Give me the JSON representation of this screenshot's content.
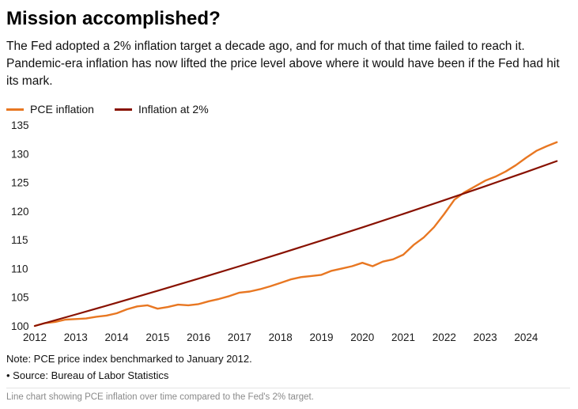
{
  "page": {
    "title": "Mission accomplished?",
    "subtitle": "The Fed adopted a 2% inflation target a decade ago, and for much of that time failed to reach it. Pandemic-era inflation has now lifted the price level above where it would have been if the Fed had hit its mark.",
    "note": "Note: PCE price index benchmarked to January 2012.",
    "source": "• Source: Bureau of Labor Statistics",
    "caption": "Line chart showing PCE inflation over time compared to the Fed's 2% target."
  },
  "legend": [
    {
      "label": "PCE inflation",
      "color": "#e87722"
    },
    {
      "label": "Inflation at 2%",
      "color": "#881100"
    }
  ],
  "chart_data": {
    "type": "line",
    "title": "Mission accomplished?",
    "xlabel": "",
    "ylabel": "",
    "xlim": [
      2012,
      2024.9
    ],
    "ylim": [
      100,
      135
    ],
    "grid": false,
    "legend_position": "top-left",
    "y_ticks": [
      100,
      105,
      110,
      115,
      120,
      125,
      130,
      135
    ],
    "x_ticks": [
      2012,
      2013,
      2014,
      2015,
      2016,
      2017,
      2018,
      2019,
      2020,
      2021,
      2022,
      2023,
      2024
    ],
    "series": [
      {
        "name": "PCE inflation",
        "color": "#e87722",
        "width": 2.4,
        "x": [
          2012.0,
          2012.25,
          2012.5,
          2012.75,
          2013.0,
          2013.25,
          2013.5,
          2013.75,
          2014.0,
          2014.25,
          2014.5,
          2014.75,
          2015.0,
          2015.25,
          2015.5,
          2015.75,
          2016.0,
          2016.25,
          2016.5,
          2016.75,
          2017.0,
          2017.25,
          2017.5,
          2017.75,
          2018.0,
          2018.25,
          2018.5,
          2018.75,
          2019.0,
          2019.25,
          2019.5,
          2019.75,
          2020.0,
          2020.25,
          2020.5,
          2020.75,
          2021.0,
          2021.25,
          2021.5,
          2021.75,
          2022.0,
          2022.25,
          2022.5,
          2022.75,
          2023.0,
          2023.25,
          2023.5,
          2023.75,
          2024.0,
          2024.25,
          2024.5,
          2024.75
        ],
        "values": [
          100.0,
          100.5,
          100.7,
          101.1,
          101.2,
          101.3,
          101.6,
          101.8,
          102.2,
          102.9,
          103.4,
          103.6,
          103.0,
          103.3,
          103.7,
          103.6,
          103.8,
          104.3,
          104.7,
          105.2,
          105.8,
          106.0,
          106.4,
          106.9,
          107.5,
          108.1,
          108.5,
          108.7,
          108.9,
          109.6,
          110.0,
          110.4,
          111.0,
          110.4,
          111.2,
          111.6,
          112.4,
          114.1,
          115.4,
          117.2,
          119.5,
          122.0,
          123.3,
          124.3,
          125.3,
          126.0,
          126.9,
          128.0,
          129.3,
          130.5,
          131.3,
          132.0
        ]
      },
      {
        "name": "Inflation at 2%",
        "color": "#881100",
        "width": 2.2,
        "x": [
          2012,
          2013,
          2014,
          2015,
          2016,
          2017,
          2018,
          2019,
          2020,
          2021,
          2022,
          2023,
          2024,
          2024.75
        ],
        "values": [
          100.0,
          102.0,
          104.04,
          106.12,
          108.24,
          110.41,
          112.62,
          114.87,
          117.17,
          119.51,
          121.9,
          124.34,
          126.82,
          128.72
        ]
      }
    ]
  }
}
